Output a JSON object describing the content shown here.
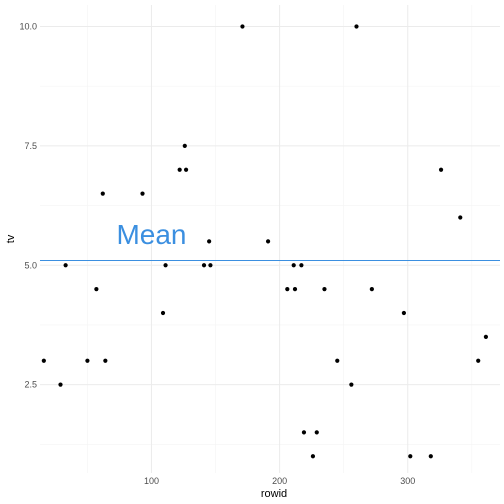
{
  "chart_data": {
    "type": "scatter",
    "title": "",
    "xlabel": "rowid",
    "ylabel": "tv",
    "xlim": [
      13,
      372
    ],
    "ylim": [
      0.65,
      10.45
    ],
    "x_ticks": [
      100,
      200,
      300
    ],
    "y_ticks": [
      2.5,
      5.0,
      7.5,
      10.0
    ],
    "y_tick_labels": [
      "2.5",
      "5.0",
      "7.5",
      "10.0"
    ],
    "grid": true,
    "legend": "none",
    "point_color": "#000000",
    "hline": {
      "y": 5.1,
      "color": "#3b8fe0"
    },
    "annotation": {
      "text": "Mean",
      "x": 100,
      "y": 5.45,
      "color": "#3b8fe0"
    },
    "points": [
      {
        "x": 16,
        "y": 3.0
      },
      {
        "x": 29,
        "y": 2.5
      },
      {
        "x": 33,
        "y": 5.0
      },
      {
        "x": 50,
        "y": 3.0
      },
      {
        "x": 57,
        "y": 4.5
      },
      {
        "x": 62,
        "y": 6.5
      },
      {
        "x": 64,
        "y": 3.0
      },
      {
        "x": 93,
        "y": 6.5
      },
      {
        "x": 109,
        "y": 4.0
      },
      {
        "x": 111,
        "y": 5.0
      },
      {
        "x": 122,
        "y": 7.0
      },
      {
        "x": 126,
        "y": 7.5
      },
      {
        "x": 127,
        "y": 7.0
      },
      {
        "x": 141,
        "y": 5.0
      },
      {
        "x": 145,
        "y": 5.5
      },
      {
        "x": 146,
        "y": 5.0
      },
      {
        "x": 171,
        "y": 10.0
      },
      {
        "x": 191,
        "y": 5.5
      },
      {
        "x": 206,
        "y": 4.5
      },
      {
        "x": 211,
        "y": 5.0
      },
      {
        "x": 212,
        "y": 4.5
      },
      {
        "x": 217,
        "y": 5.0
      },
      {
        "x": 219,
        "y": 1.5
      },
      {
        "x": 226,
        "y": 1.0
      },
      {
        "x": 229,
        "y": 1.5
      },
      {
        "x": 235,
        "y": 4.5
      },
      {
        "x": 245,
        "y": 3.0
      },
      {
        "x": 256,
        "y": 2.5
      },
      {
        "x": 260,
        "y": 10.0
      },
      {
        "x": 272,
        "y": 4.5
      },
      {
        "x": 297,
        "y": 4.0
      },
      {
        "x": 302,
        "y": 1.0
      },
      {
        "x": 318,
        "y": 1.0
      },
      {
        "x": 326,
        "y": 7.0
      },
      {
        "x": 341,
        "y": 6.0
      },
      {
        "x": 355,
        "y": 3.0
      },
      {
        "x": 361,
        "y": 3.5
      }
    ]
  }
}
